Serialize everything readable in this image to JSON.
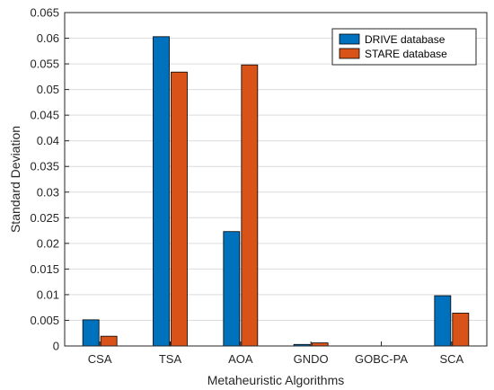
{
  "chart_data": {
    "type": "bar",
    "title": "",
    "xlabel": "Metaheuristic Algorithms",
    "ylabel": "Standard Deviation",
    "categories": [
      "CSA",
      "TSA",
      "AOA",
      "GNDO",
      "GOBC-PA",
      "SCA"
    ],
    "series": [
      {
        "name": "DRIVE database",
        "color": "#0072bd",
        "values": [
          0.0051,
          0.0603,
          0.0223,
          0.0003,
          0,
          0.0098
        ]
      },
      {
        "name": "STARE database",
        "color": "#d95319",
        "values": [
          0.0019,
          0.0534,
          0.0548,
          0.0006,
          0,
          0.0064
        ]
      }
    ],
    "ylim": [
      0,
      0.065
    ],
    "yticks": [
      "0",
      "0.005",
      "0.01",
      "0.015",
      "0.02",
      "0.025",
      "0.03",
      "0.035",
      "0.04",
      "0.045",
      "0.05",
      "0.055",
      "0.06",
      "0.065"
    ],
    "grid": true,
    "legend_position": "top-right"
  }
}
